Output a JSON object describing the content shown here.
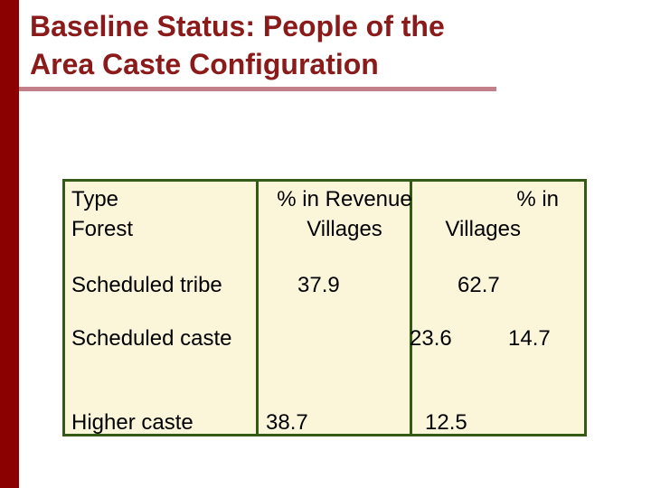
{
  "slide": {
    "title_line1": "Baseline Status: People of the",
    "title_line2": "Area Caste Configuration"
  },
  "table": {
    "header": {
      "col1_line1": "Type",
      "col1_line2": "Forest",
      "col2_line1": "% in Revenue",
      "col2_line2": "Villages",
      "col3_line1": "% in",
      "col3_line2": "Villages"
    },
    "rows": [
      {
        "label": "Scheduled tribe",
        "revenue": "37.9",
        "forest": "62.7"
      },
      {
        "label": "Scheduled caste",
        "revenue": "23.6",
        "forest": "14.7"
      },
      {
        "label": "Higher caste",
        "revenue": "38.7",
        "forest": "12.5"
      }
    ]
  },
  "colors": {
    "accent_bar": "#8b0000",
    "title": "#8b1a1a",
    "underline": "#c4808a",
    "table_fill": "#fbf6d9",
    "table_border": "#345b16"
  }
}
